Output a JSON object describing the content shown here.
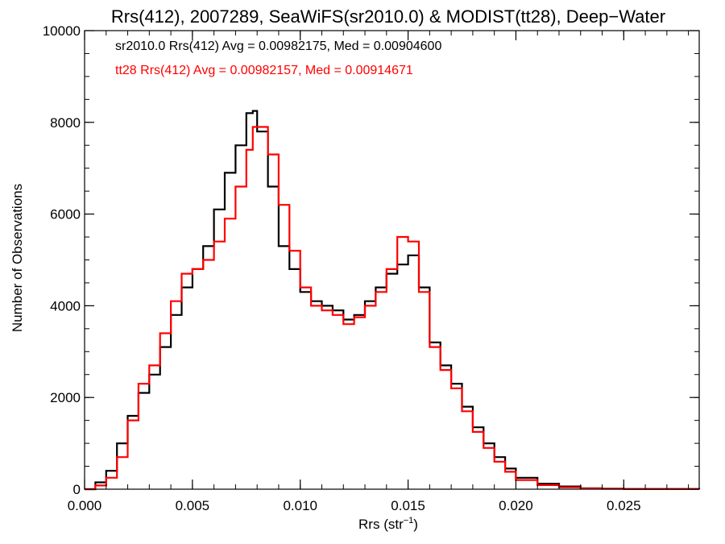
{
  "chart_data": {
    "type": "line",
    "title": "Rrs(412), 2007289, SeaWiFS(sr2010.0) & MODIST(tt28), Deep−Water",
    "xlabel": "Rrs (str",
    "xlabel_sup": "−1",
    "xlabel_close": ")",
    "ylabel": "Number of Observations",
    "xlim": [
      0.0,
      0.0285
    ],
    "ylim": [
      0,
      10000
    ],
    "x_ticks": [
      0.0,
      0.005,
      0.01,
      0.015,
      0.02,
      0.025
    ],
    "x_tick_labels": [
      "0.000",
      "0.005",
      "0.010",
      "0.015",
      "0.020",
      "0.025"
    ],
    "y_ticks": [
      0,
      2000,
      4000,
      6000,
      8000,
      10000
    ],
    "y_tick_labels": [
      "0",
      "2000",
      "4000",
      "6000",
      "8000",
      "10000"
    ],
    "grid": false,
    "annotations": [
      {
        "text": "sr2010.0 Rrs(412) Avg = 0.00982175, Med = 0.00904600",
        "color": "#000000"
      },
      {
        "text": "tt28 Rrs(412) Avg = 0.00982157, Med = 0.00914671",
        "color": "#ff0000"
      }
    ],
    "series": [
      {
        "color": "#000000",
        "x": [
          0.0,
          0.0005,
          0.001,
          0.0015,
          0.002,
          0.0025,
          0.003,
          0.0035,
          0.004,
          0.0045,
          0.005,
          0.0055,
          0.006,
          0.0065,
          0.007,
          0.0075,
          0.0078,
          0.008,
          0.0085,
          0.009,
          0.0095,
          0.01,
          0.0105,
          0.011,
          0.0115,
          0.012,
          0.0125,
          0.013,
          0.0135,
          0.014,
          0.0145,
          0.015,
          0.0155,
          0.016,
          0.0165,
          0.017,
          0.0175,
          0.018,
          0.0185,
          0.019,
          0.0195,
          0.02,
          0.021,
          0.022,
          0.023,
          0.024,
          0.025,
          0.0285
        ],
        "y": [
          0,
          150,
          400,
          1000,
          1600,
          2100,
          2500,
          3100,
          3800,
          4400,
          4800,
          5300,
          6100,
          6900,
          7500,
          8200,
          8250,
          7800,
          6600,
          5300,
          4800,
          4300,
          4100,
          4000,
          3900,
          3700,
          3800,
          4100,
          4400,
          4700,
          4900,
          5100,
          4400,
          3200,
          2700,
          2300,
          1800,
          1350,
          1000,
          700,
          450,
          250,
          120,
          60,
          20,
          10,
          5,
          0
        ]
      },
      {
        "color": "#ff0000",
        "x": [
          0.0,
          0.0005,
          0.001,
          0.0015,
          0.002,
          0.0025,
          0.003,
          0.0035,
          0.004,
          0.0045,
          0.005,
          0.0055,
          0.006,
          0.0065,
          0.007,
          0.0075,
          0.0078,
          0.008,
          0.0085,
          0.009,
          0.0095,
          0.01,
          0.0105,
          0.011,
          0.0115,
          0.012,
          0.0125,
          0.013,
          0.0135,
          0.014,
          0.0145,
          0.015,
          0.0155,
          0.016,
          0.0165,
          0.017,
          0.0175,
          0.018,
          0.0185,
          0.019,
          0.0195,
          0.02,
          0.021,
          0.022,
          0.023,
          0.024,
          0.025,
          0.0285
        ],
        "y": [
          0,
          80,
          250,
          700,
          1500,
          2300,
          2700,
          3400,
          4100,
          4700,
          4800,
          5000,
          5400,
          5900,
          6600,
          7400,
          7900,
          7900,
          7300,
          6200,
          5200,
          4400,
          4000,
          3900,
          3800,
          3600,
          3750,
          4000,
          4300,
          4800,
          5500,
          5400,
          4300,
          3100,
          2600,
          2200,
          1700,
          1250,
          900,
          600,
          380,
          200,
          90,
          40,
          15,
          8,
          3,
          0
        ]
      }
    ]
  }
}
